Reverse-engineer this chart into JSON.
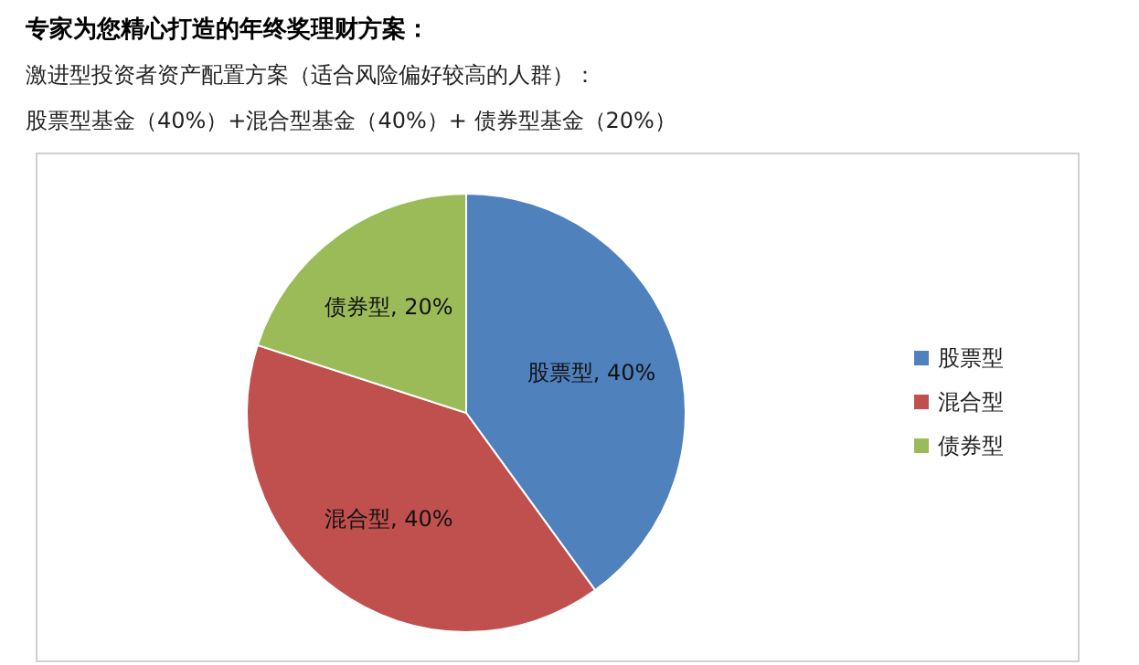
{
  "chart_data": {
    "type": "pie",
    "title": "专家为您精心打造的年终奖理财方案：",
    "subtitle": "激进型投资者资产配置方案（适合风险偏好较高的人群）：",
    "annotations": [
      "股票型基金（40%）+混合型基金（40%）+ 债券型基金（20%）"
    ],
    "categories": [
      "股票型",
      "混合型",
      "债券型"
    ],
    "values": [
      40,
      40,
      20
    ],
    "colors": [
      "#4f81bd",
      "#c0504d",
      "#9bbb59"
    ],
    "value_labels": [
      "股票型, 40%",
      "混合型, 40%",
      "债券型, 20%"
    ],
    "legend": "right"
  }
}
